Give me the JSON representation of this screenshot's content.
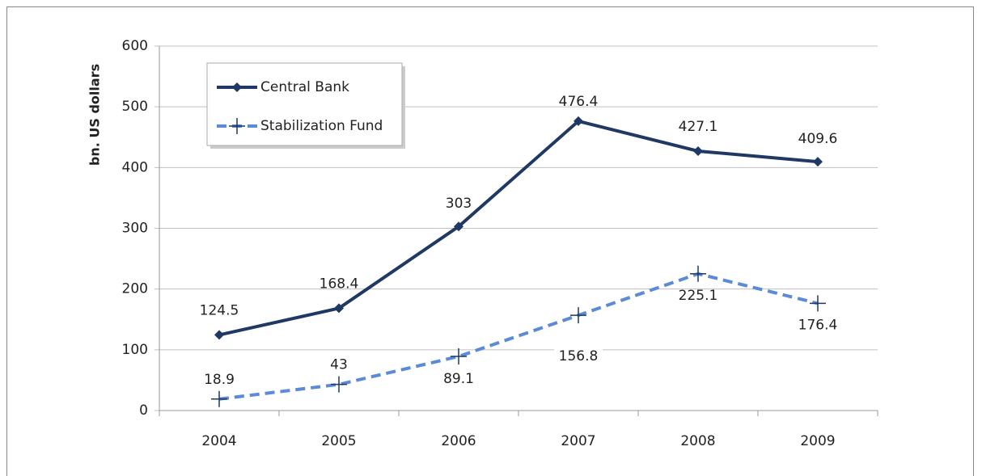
{
  "chart_data": {
    "type": "line",
    "y_label": "bn. US dollars",
    "categories": [
      "2004",
      "2005",
      "2006",
      "2007",
      "2008",
      "2009"
    ],
    "series": [
      {
        "name": "Central Bank",
        "color": "#1f3864",
        "values": [
          124.5,
          168.4,
          303,
          476.4,
          427.1,
          409.6
        ]
      },
      {
        "name": "Stabilization Fund",
        "color": "#5b8bd6",
        "values": [
          18.9,
          43,
          89.1,
          156.8,
          225.1,
          176.4
        ]
      }
    ],
    "ylim": [
      0,
      600
    ],
    "yticks": [
      0,
      100,
      200,
      300,
      400,
      500,
      600
    ],
    "grid": true
  }
}
